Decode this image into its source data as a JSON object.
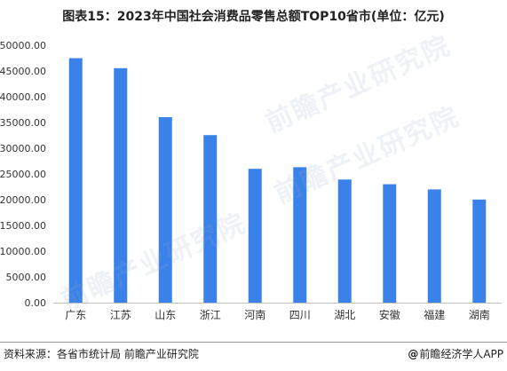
{
  "chart_data": {
    "type": "bar",
    "title": "图表15：2023年中国社会消费品零售总额TOP10省市(单位：亿元)",
    "categories": [
      "广东",
      "江苏",
      "山东",
      "浙江",
      "河南",
      "四川",
      "湖北",
      "安徽",
      "福建",
      "湖南"
    ],
    "values": [
      47494.9,
      45547.5,
      36029.3,
      32550.2,
      26004.4,
      26313.0,
      23922.8,
      23008.3,
      22000.0,
      20032.3
    ],
    "ylim": [
      0,
      50000
    ],
    "yticks": [
      "0.00",
      "5000.00",
      "10000.00",
      "15000.00",
      "20000.00",
      "25000.00",
      "30000.00",
      "35000.00",
      "40000.00",
      "45000.00",
      "50000.00"
    ],
    "xlabel": "",
    "ylabel": "",
    "grid": false,
    "bar_color": "#3a82ea"
  },
  "footer": {
    "source": "资料来源：各省市统计局 前瞻产业研究院",
    "brand_mark": "@",
    "brand": "前瞻经济学人APP"
  },
  "watermark_text": "前瞻产业研究院"
}
